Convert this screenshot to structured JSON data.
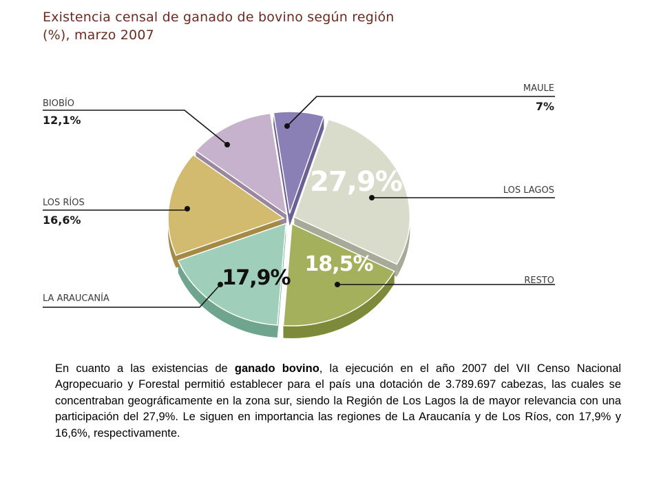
{
  "chart_data": {
    "type": "pie",
    "title_first": "Existencia censal de ganado de bovino según región",
    "title_second": "(%), marzo 2007",
    "slices": [
      {
        "name": "MAULE",
        "value": 7,
        "value_label": "7%",
        "color": "#8a80b6",
        "side": "#6a6094"
      },
      {
        "name": "LOS LAGOS",
        "value": 27.9,
        "value_label": "27,9%",
        "color": "#d9dcca",
        "side": "#a7aa97"
      },
      {
        "name": "RESTO",
        "value": 18.5,
        "value_label": "18,5%",
        "color": "#a5b05c",
        "side": "#7c8a3a"
      },
      {
        "name": "LA ARAUCANÍA",
        "value": 17.9,
        "value_label": "17,9%",
        "color": "#9fcfba",
        "side": "#6fa58e"
      },
      {
        "name": "LOS RÍOS",
        "value": 16.6,
        "value_label": "16,6%",
        "color": "#d2ba6e",
        "side": "#a48a44"
      },
      {
        "name": "BIOBÍO",
        "value": 12.1,
        "value_label": "12,1%",
        "color": "#c6b2cc",
        "side": "#9a869f"
      }
    ]
  },
  "paragraph": {
    "part1": "En cuanto a las existencias de ",
    "bold": "ganado bovino",
    "part2": ", la ejecución en el año 2007 del VII Censo Nacional Agropecuario y Forestal permitió establecer para el país una dotación de 3.789.697 cabezas, las cuales se concentraban geográficamente en la zona sur, siendo la Región de Los Lagos la de mayor relevancia con una participación del 27,9%. Le siguen en importancia las regiones de La Araucanía y de Los Ríos, con 17,9% y 16,6%, respectivamente."
  }
}
